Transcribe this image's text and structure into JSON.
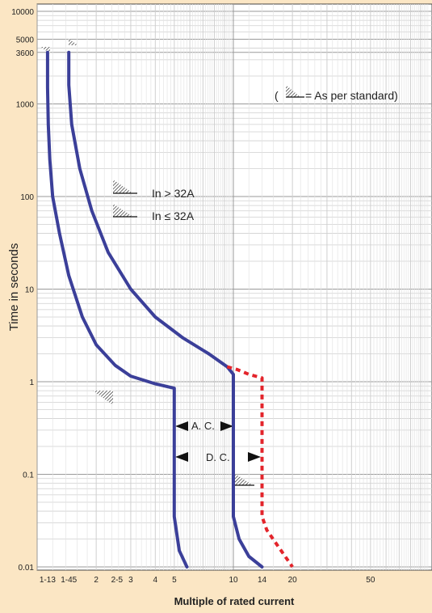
{
  "chart_data": {
    "type": "line",
    "xlabel": "Multiple of rated current",
    "ylabel": "Time in seconds",
    "x_scale": "log",
    "y_scale": "log",
    "xlim": [
      1,
      100
    ],
    "ylim": [
      0.01,
      10000
    ],
    "grid": true,
    "y_tick_labels": [
      {
        "value": 10000,
        "label": "10000"
      },
      {
        "value": 5000,
        "label": "5000"
      },
      {
        "value": 3600,
        "label": "3600"
      },
      {
        "value": 1000,
        "label": "1000"
      },
      {
        "value": 100,
        "label": "100"
      },
      {
        "value": 10,
        "label": "10"
      },
      {
        "value": 1,
        "label": "1"
      },
      {
        "value": 0.1,
        "label": "0.1"
      },
      {
        "value": 0.01,
        "label": "0.01"
      }
    ],
    "x_tick_labels": [
      {
        "value": 1.13,
        "label": "1-13"
      },
      {
        "value": 1.45,
        "label": "1-45"
      },
      {
        "value": 2,
        "label": "2"
      },
      {
        "value": 2.55,
        "label": "2-5"
      },
      {
        "value": 3,
        "label": "3"
      },
      {
        "value": 4,
        "label": "4"
      },
      {
        "value": 5,
        "label": "5"
      },
      {
        "value": 10,
        "label": "10"
      },
      {
        "value": 14,
        "label": "14"
      },
      {
        "value": 20,
        "label": "20"
      },
      {
        "value": 50,
        "label": "50"
      }
    ],
    "series": [
      {
        "color": "#3b3f99",
        "style": "solid",
        "x": [
          1.13,
          1.13,
          1.14,
          1.16,
          1.2,
          1.3,
          1.45,
          1.7,
          2.0,
          2.5,
          3.0,
          4.0,
          5.0,
          5.0,
          5.0,
          5.3,
          5.8
        ],
        "y": [
          3600,
          1500,
          600,
          250,
          100,
          40,
          14,
          5,
          2.5,
          1.5,
          1.15,
          0.95,
          0.85,
          0.2,
          0.035,
          0.015,
          0.01
        ]
      },
      {
        "color": "#3b3f99",
        "style": "solid",
        "x": [
          1.45,
          1.45,
          1.5,
          1.65,
          1.9,
          2.3,
          3.0,
          4.0,
          5.5,
          7.5,
          9.3,
          10,
          10,
          10,
          10.7,
          12.0,
          14.0
        ],
        "y": [
          3600,
          1600,
          600,
          200,
          70,
          25,
          10,
          5,
          3,
          2,
          1.45,
          1.2,
          0.5,
          0.035,
          0.02,
          0.013,
          0.01
        ]
      },
      {
        "color": "#e3242b",
        "style": "dashed",
        "x": [
          9.3,
          10.5,
          12.0,
          14.0,
          14.0,
          14.0,
          14.8,
          16.5,
          20.0
        ],
        "y": [
          1.45,
          1.35,
          1.2,
          1.1,
          0.4,
          0.035,
          0.025,
          0.018,
          0.01
        ]
      }
    ],
    "annotations": [
      {
        "text": "In > 32A",
        "x": 3.3,
        "y": 130
      },
      {
        "text": "In ≤ 32A",
        "x": 3.3,
        "y": 80
      },
      {
        "text": "( ",
        "x": 35,
        "y": 1200
      },
      {
        "text": " = As per standard)",
        "x": 52,
        "y": 1200
      },
      {
        "text": "A. C.",
        "x": 7,
        "y": 0.45
      },
      {
        "text": "D. C.",
        "x": 9,
        "y": 0.22
      }
    ]
  },
  "icons": {
    "hatch": "hatch-icon"
  }
}
